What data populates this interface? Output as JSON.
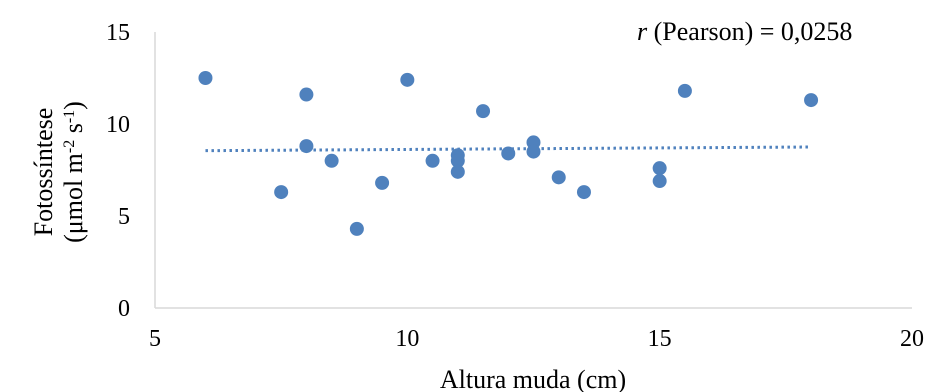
{
  "chart_data": {
    "type": "scatter",
    "xlabel": "Altura muda (cm)",
    "ylabel_line1": "Fotossíntese",
    "ylabel_line2": "(μmol m-2 s-1)",
    "ylabel_unit_base": "(μmol m",
    "ylabel_unit_exp1": "-2",
    "ylabel_unit_mid": " s",
    "ylabel_unit_exp2": "-1",
    "ylabel_unit_end": ")",
    "xlim": [
      5,
      20
    ],
    "ylim": [
      0,
      15
    ],
    "xticks": [
      "5",
      "10",
      "15",
      "20"
    ],
    "yticks": [
      "0",
      "5",
      "10",
      "15"
    ],
    "grid": false,
    "annotation_italic": "r",
    "annotation_rest": " (Pearson) = 0,0258",
    "marker_color": "#4f81bd",
    "trendline": {
      "style": "dotted",
      "x": [
        6,
        18
      ],
      "y": [
        8.55,
        8.75
      ]
    },
    "points": [
      {
        "x": 6,
        "y": 12.5
      },
      {
        "x": 7.5,
        "y": 6.3
      },
      {
        "x": 8,
        "y": 11.6
      },
      {
        "x": 8,
        "y": 8.8
      },
      {
        "x": 8.5,
        "y": 8.0
      },
      {
        "x": 9,
        "y": 4.3
      },
      {
        "x": 9.5,
        "y": 6.8
      },
      {
        "x": 10,
        "y": 12.4
      },
      {
        "x": 10.5,
        "y": 8.0
      },
      {
        "x": 11,
        "y": 8.3
      },
      {
        "x": 11,
        "y": 8.0
      },
      {
        "x": 11,
        "y": 7.4
      },
      {
        "x": 11.5,
        "y": 10.7
      },
      {
        "x": 12,
        "y": 8.4
      },
      {
        "x": 12.5,
        "y": 9.0
      },
      {
        "x": 12.5,
        "y": 8.5
      },
      {
        "x": 13,
        "y": 7.1
      },
      {
        "x": 13.5,
        "y": 6.3
      },
      {
        "x": 15,
        "y": 7.6
      },
      {
        "x": 15,
        "y": 6.9
      },
      {
        "x": 15.5,
        "y": 11.8
      },
      {
        "x": 18,
        "y": 11.3
      }
    ]
  }
}
